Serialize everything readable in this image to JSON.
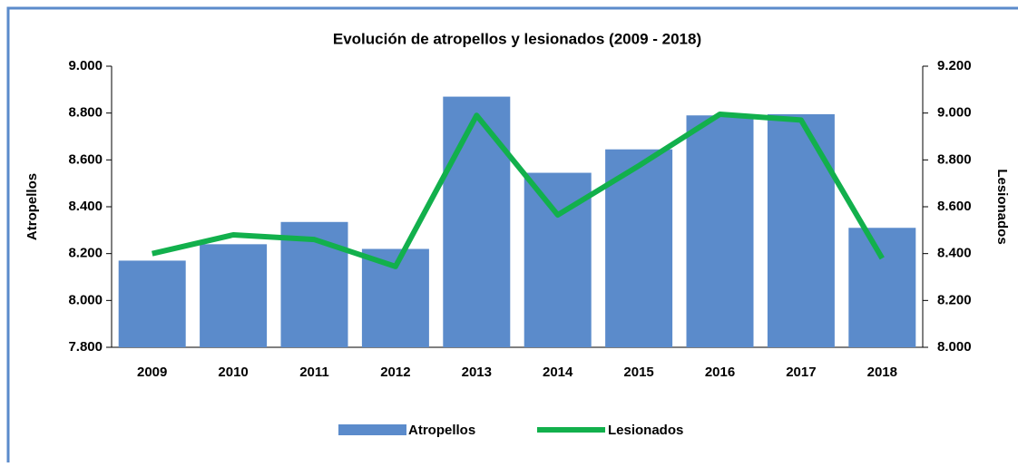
{
  "chart_data": {
    "type": "bar_line",
    "title": "Evolución  de atropellos y lesionados (2009 - 2018)",
    "y_label": "Atropellos",
    "y2_label": "Lesionados",
    "categories": [
      "2009",
      "2010",
      "2011",
      "2012",
      "2013",
      "2014",
      "2015",
      "2016",
      "2017",
      "2018"
    ],
    "series": [
      {
        "name": "Atropellos",
        "type": "bar",
        "color": "#5b8bcb",
        "values": [
          8170,
          8240,
          8335,
          8220,
          8870,
          8545,
          8645,
          8790,
          8795,
          8310
        ]
      },
      {
        "name": "Lesionados",
        "type": "line",
        "axis": "y2",
        "color": "#12b04c",
        "values": [
          8400,
          8480,
          8460,
          8345,
          8990,
          8565,
          8775,
          8995,
          8970,
          8380
        ]
      }
    ],
    "ylim": [
      7800,
      9000
    ],
    "yticks": [
      {
        "value": 7800,
        "label": "7.800"
      },
      {
        "value": 8000,
        "label": "8.000"
      },
      {
        "value": 8200,
        "label": "8.200"
      },
      {
        "value": 8400,
        "label": "8.400"
      },
      {
        "value": 8600,
        "label": "8.600"
      },
      {
        "value": 8800,
        "label": "8.800"
      },
      {
        "value": 9000,
        "label": "9.000"
      }
    ],
    "y2lim": [
      8000,
      9200
    ],
    "y2ticks": [
      {
        "value": 8000,
        "label": "8.000"
      },
      {
        "value": 8200,
        "label": "8.200"
      },
      {
        "value": 8400,
        "label": "8.400"
      },
      {
        "value": 8600,
        "label": "8.600"
      },
      {
        "value": 8800,
        "label": "8.800"
      },
      {
        "value": 9000,
        "label": "9.000"
      },
      {
        "value": 9200,
        "label": "9.200"
      }
    ]
  }
}
